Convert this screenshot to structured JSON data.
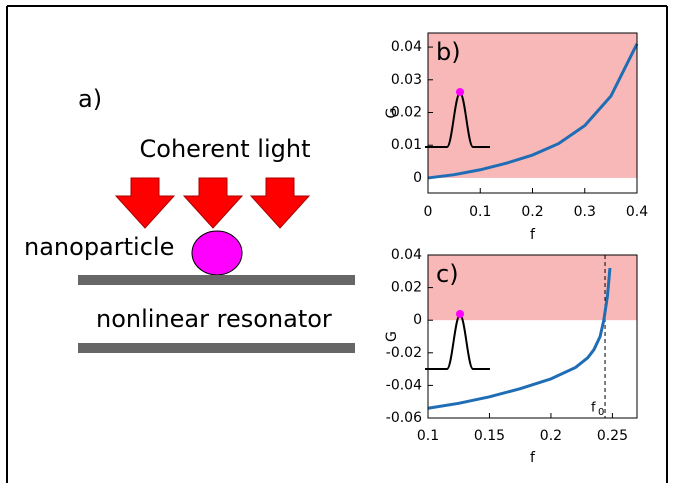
{
  "diagram": {
    "panel": "a)",
    "light": "Coherent light",
    "particle": "nanoparticle",
    "resonator": "nonlinear resonator"
  },
  "chart_data": [
    {
      "type": "line",
      "panel": "b)",
      "xlabel": "f",
      "ylabel": "G",
      "x": [
        0,
        0.05,
        0.1,
        0.15,
        0.2,
        0.25,
        0.3,
        0.35,
        0.4
      ],
      "series": [
        {
          "color": "#1f6db5",
          "values": [
            0,
            0.001,
            0.0025,
            0.0045,
            0.007,
            0.0105,
            0.016,
            0.025,
            0.041
          ]
        }
      ],
      "xlim": [
        0,
        0.4
      ],
      "xticks": [
        0,
        0.1,
        0.2,
        0.3,
        0.4
      ],
      "ylim": [
        -0.0046,
        0.0443
      ],
      "yticks": [
        0,
        0.01,
        0.02,
        0.03,
        0.04
      ],
      "positive_region_color": "#f9b8b8"
    },
    {
      "type": "line",
      "panel": "c)",
      "xlabel": "f",
      "ylabel": "G",
      "x": [
        0.1,
        0.125,
        0.15,
        0.175,
        0.2,
        0.22,
        0.23,
        0.235,
        0.24,
        0.243,
        0.246,
        0.248
      ],
      "series": [
        {
          "color": "#1f6db5",
          "values": [
            -0.054,
            -0.051,
            -0.047,
            -0.042,
            -0.036,
            -0.029,
            -0.023,
            -0.018,
            -0.01,
            0,
            0.015,
            0.032
          ]
        }
      ],
      "xlim": [
        0.1,
        0.27
      ],
      "xticks": [
        0.1,
        0.15,
        0.2,
        0.25
      ],
      "ylim": [
        -0.06,
        0.04
      ],
      "yticks": [
        -0.06,
        -0.04,
        -0.02,
        0,
        0.02,
        0.04
      ],
      "positive_region_color": "#f9b8b8",
      "annotations": [
        {
          "text": "f",
          "sub": "0",
          "x": 0.244
        }
      ]
    }
  ]
}
